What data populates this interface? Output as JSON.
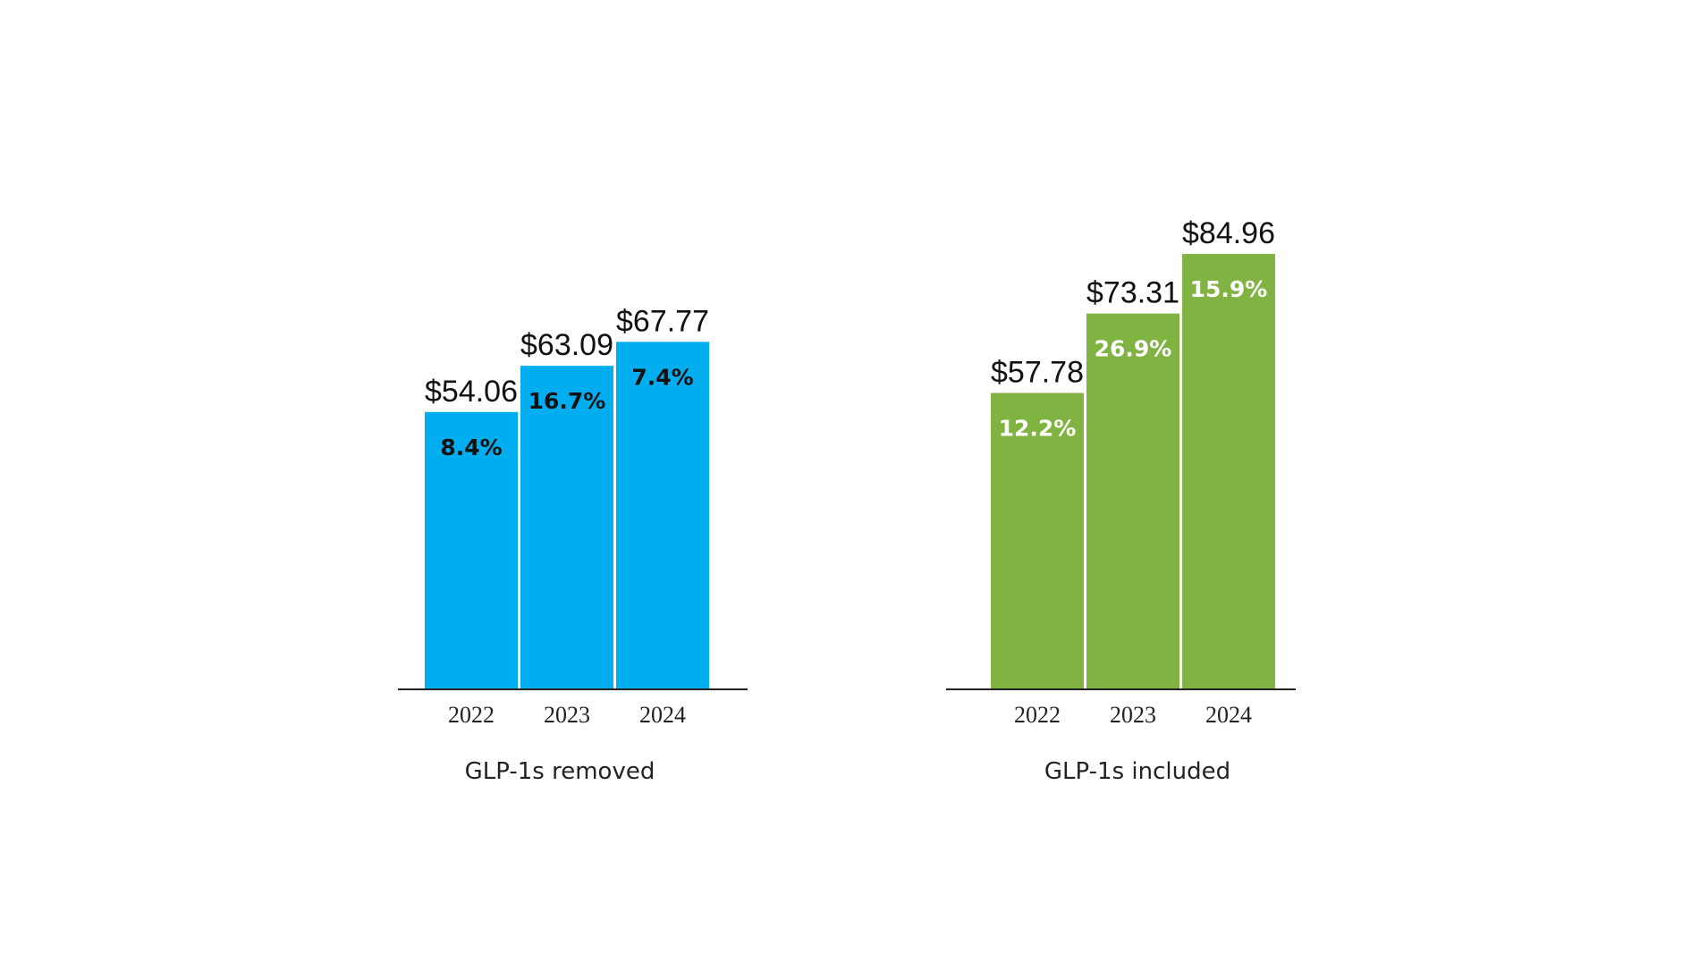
{
  "chart_data": [
    {
      "type": "bar",
      "caption": "GLP-1s removed",
      "categories": [
        "2022",
        "2023",
        "2024"
      ],
      "values": [
        54.06,
        63.09,
        67.77
      ],
      "value_labels": [
        "$54.06",
        "$63.09",
        "$67.77"
      ],
      "change_labels": [
        "8.4%",
        "16.7%",
        "7.4%"
      ],
      "color": "#00aeef",
      "label_color": "#111111"
    },
    {
      "type": "bar",
      "caption": "GLP-1s included",
      "categories": [
        "2022",
        "2023",
        "2024"
      ],
      "values": [
        57.78,
        73.31,
        84.96
      ],
      "value_labels": [
        "$57.78",
        "$73.31",
        "$84.96"
      ],
      "change_labels": [
        "12.2%",
        "26.9%",
        "15.9%"
      ],
      "color": "#80b342",
      "label_color": "#ffffff"
    }
  ]
}
